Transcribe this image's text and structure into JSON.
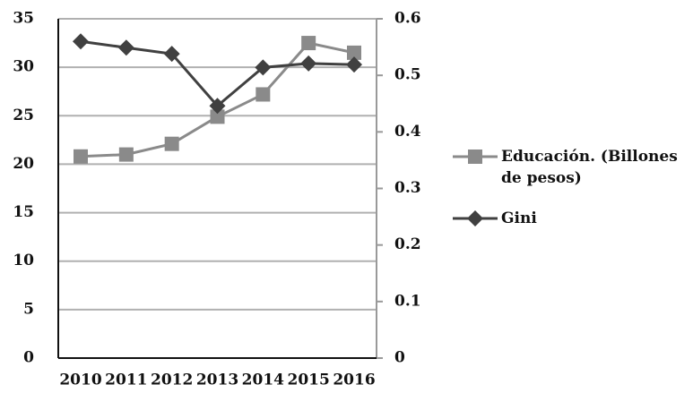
{
  "chart_data": {
    "type": "line",
    "categories": [
      "2010",
      "2011",
      "2012",
      "2013",
      "2014",
      "2015",
      "2016"
    ],
    "series": [
      {
        "name": "Educación. (Billones de pesos)",
        "color": "#8a8a8a",
        "marker": "square",
        "values": [
          20.8,
          21.0,
          22.1,
          24.9,
          27.2,
          32.5,
          31.5
        ]
      },
      {
        "name": "Gini",
        "color": "#404040",
        "marker": "diamond",
        "axis": "y2",
        "values": [
          0.56,
          0.549,
          0.538,
          0.446,
          0.514,
          0.521,
          0.519
        ]
      }
    ],
    "ylim": [
      0,
      35
    ],
    "yticks": [
      0,
      5,
      10,
      15,
      20,
      25,
      30,
      35
    ],
    "y2lim": [
      0,
      0.6
    ],
    "y2ticks": [
      0,
      0.1,
      0.2,
      0.3,
      0.4,
      0.5,
      0.6
    ],
    "grid": true,
    "legend": "right"
  }
}
